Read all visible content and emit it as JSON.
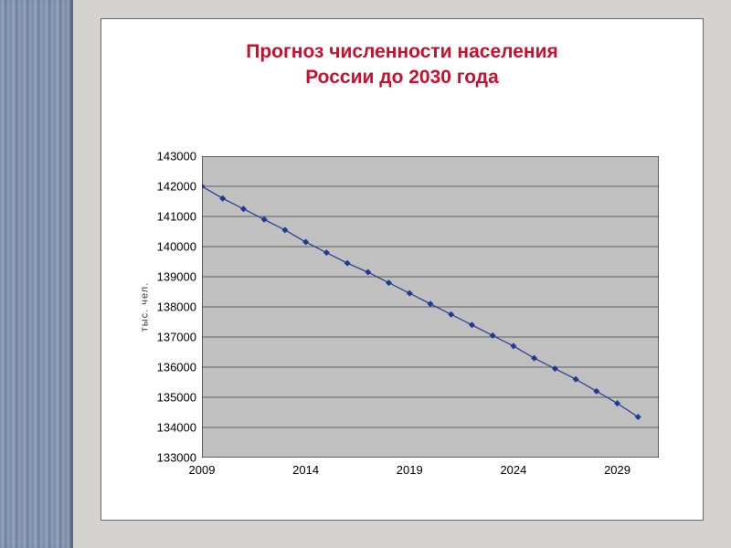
{
  "chart": {
    "type": "line",
    "title_line1": "Прогноз численности населения",
    "title_line2": "России до 2030 года",
    "title_color": "#c8102e",
    "title_fontsize": 21,
    "years": [
      2009,
      2010,
      2011,
      2012,
      2013,
      2014,
      2015,
      2016,
      2017,
      2018,
      2019,
      2020,
      2021,
      2022,
      2023,
      2024,
      2025,
      2026,
      2027,
      2028,
      2029,
      2030
    ],
    "values": [
      142000,
      141600,
      141250,
      140900,
      140550,
      140150,
      139800,
      139450,
      139150,
      138800,
      138450,
      138100,
      137750,
      137400,
      137050,
      136700,
      136300,
      135950,
      135600,
      135200,
      134800,
      134350
    ],
    "series_color": "#1f3b8f",
    "marker_color": "#1f3b8f",
    "marker_size": 3.5,
    "line_width": 1.2,
    "x_domain_min": 2009,
    "x_domain_max": 2031,
    "x_ticks": [
      2009,
      2014,
      2019,
      2024,
      2029
    ],
    "y_domain_min": 133000,
    "y_domain_max": 143000,
    "y_ticks": [
      133000,
      134000,
      135000,
      136000,
      137000,
      138000,
      139000,
      140000,
      141000,
      142000,
      143000
    ],
    "plot_bg": "#c0c0c0",
    "grid_color": "#000000",
    "grid_width": 0.5,
    "panel_border": "#666666",
    "page_bg": "#d5d3d0",
    "ylabel": "тыс. чел.",
    "label_fontsize": 13
  }
}
